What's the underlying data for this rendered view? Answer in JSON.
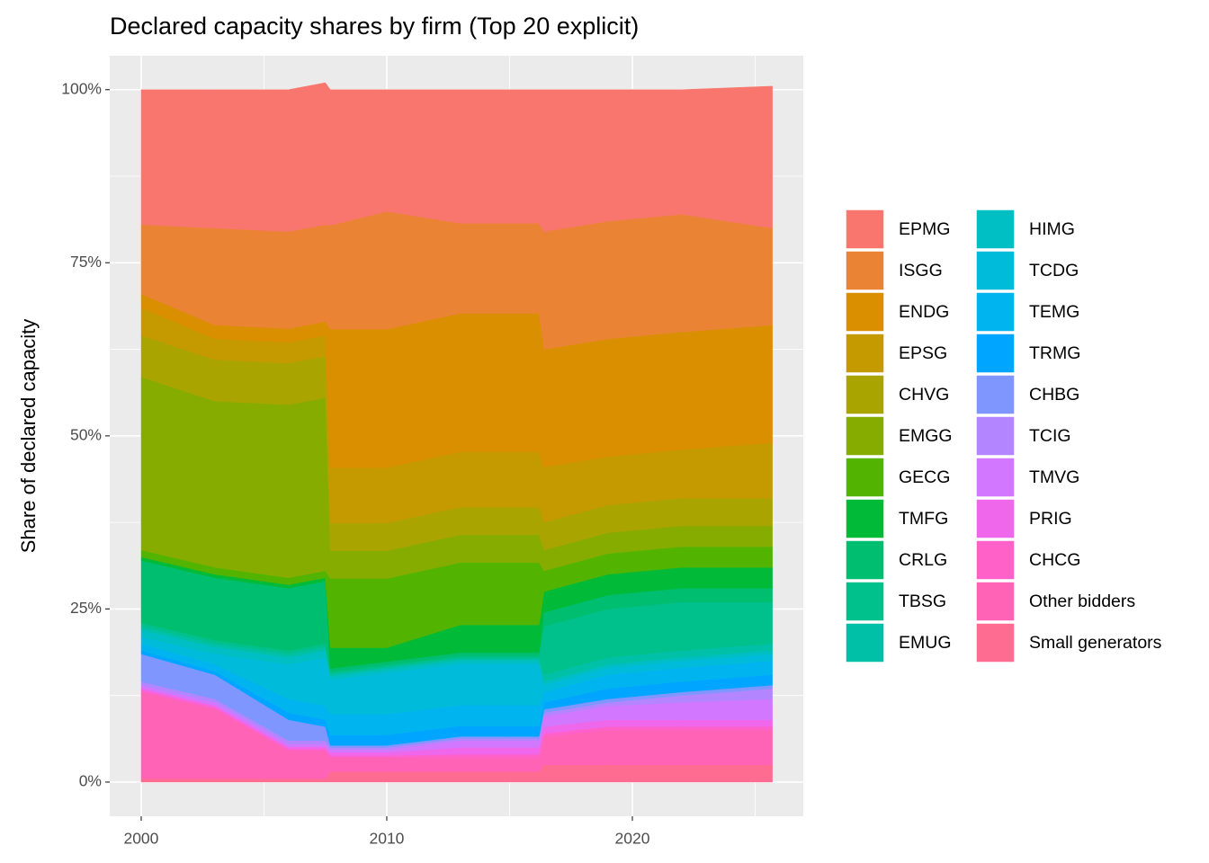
{
  "chart_data": {
    "type": "area",
    "title": "Declared capacity shares by firm (Top 20 explicit)",
    "y_label": "Share of declared capacity",
    "x": [
      2000,
      2003,
      2006,
      2007.5,
      2007.7,
      2010,
      2013,
      2016.2,
      2016.4,
      2019,
      2022,
      2025.7
    ],
    "xlim": [
      1998.72,
      2026.96
    ],
    "xticks": [
      2000,
      2010,
      2020
    ],
    "ylim": [
      -4.94,
      104.9
    ],
    "yticks": [
      {
        "value": 0,
        "label": "0%"
      },
      {
        "value": 25,
        "label": "25%"
      },
      {
        "value": 50,
        "label": "50%"
      },
      {
        "value": 75,
        "label": "75%"
      },
      {
        "value": 100,
        "label": "100%"
      }
    ],
    "grid": true,
    "legend": "right",
    "stacked": true,
    "series": [
      {
        "name": "EPMG",
        "color": "#F8766D",
        "values": [
          19.5,
          20,
          20.5,
          20.5,
          19.6,
          17.6,
          19.3,
          19.3,
          20.5,
          19,
          18,
          20.5
        ]
      },
      {
        "name": "ISGG",
        "color": "#EB8335",
        "values": [
          10,
          14,
          14,
          14,
          15,
          17,
          13,
          13,
          17,
          17,
          17,
          14
        ]
      },
      {
        "name": "ENDG",
        "color": "#DA8F00",
        "values": [
          2,
          2,
          2,
          2,
          20,
          20,
          20,
          20,
          17,
          17,
          17,
          17
        ]
      },
      {
        "name": "EPSG",
        "color": "#C49A00",
        "values": [
          4,
          3,
          3,
          3,
          8,
          8,
          8,
          8,
          8,
          7,
          7,
          8
        ]
      },
      {
        "name": "CHVG",
        "color": "#A9A400",
        "values": [
          6,
          6,
          6,
          6,
          4,
          4,
          4,
          4,
          4,
          4,
          4,
          4
        ]
      },
      {
        "name": "EMGG",
        "color": "#86AC00",
        "values": [
          25,
          24,
          25,
          25,
          4,
          4,
          4,
          4,
          3,
          3,
          3,
          3
        ]
      },
      {
        "name": "GECG",
        "color": "#53B400",
        "values": [
          1,
          1,
          1,
          1,
          10,
          10,
          9,
          9,
          3,
          3,
          3,
          3
        ]
      },
      {
        "name": "TMFG",
        "color": "#00BA38",
        "values": [
          0.5,
          0.5,
          0.5,
          0.5,
          3,
          2,
          4,
          4,
          3,
          3,
          3,
          3
        ]
      },
      {
        "name": "CRLG",
        "color": "#00BE70",
        "values": [
          9,
          9,
          9,
          9,
          0.5,
          0.5,
          0.5,
          0.5,
          2,
          2,
          2,
          2
        ]
      },
      {
        "name": "TBSG",
        "color": "#00C08B",
        "values": [
          0.5,
          0.5,
          0.5,
          0.5,
          0.3,
          0.3,
          0.3,
          0.3,
          7,
          7,
          7,
          6
        ]
      },
      {
        "name": "EMUG",
        "color": "#00C0A7",
        "values": [
          0.5,
          0.5,
          0.5,
          0.5,
          0.3,
          0.3,
          0.3,
          0.3,
          1,
          1,
          1,
          1
        ]
      },
      {
        "name": "HIMG",
        "color": "#00BFC4",
        "values": [
          1,
          1,
          1,
          1,
          0.5,
          0.5,
          0.5,
          0.5,
          0.5,
          0.5,
          0.5,
          0.5
        ]
      },
      {
        "name": "TCDG",
        "color": "#00BBDA",
        "values": [
          1,
          1.5,
          5,
          7,
          5,
          6,
          6,
          6,
          1,
          1,
          1,
          1
        ]
      },
      {
        "name": "TEMG",
        "color": "#00B4EF",
        "values": [
          1,
          1,
          2,
          2,
          3,
          3,
          3,
          3,
          1.5,
          2,
          2,
          2
        ]
      },
      {
        "name": "TRMG",
        "color": "#00A5FF",
        "values": [
          0.5,
          0.5,
          1,
          1,
          1.5,
          1.5,
          1.5,
          1.5,
          1,
          1.5,
          1.5,
          1.5
        ]
      },
      {
        "name": "CHBG",
        "color": "#7F96FF",
        "values": [
          4,
          3.5,
          3,
          2,
          0.3,
          0.3,
          0.3,
          0.3,
          0.5,
          0.5,
          0.5,
          0.5
        ]
      },
      {
        "name": "TCIG",
        "color": "#B385FF",
        "values": [
          0.5,
          0.5,
          0.5,
          0.5,
          0.3,
          0.3,
          0.3,
          0.3,
          0.5,
          0.5,
          1,
          1.5
        ]
      },
      {
        "name": "TMVG",
        "color": "#D277FF",
        "values": [
          0.4,
          0.4,
          0.4,
          0.4,
          0.4,
          0.4,
          1,
          1,
          1.5,
          2,
          2.5,
          3
        ]
      },
      {
        "name": "PRIG",
        "color": "#EF67EB",
        "values": [
          0.3,
          0.3,
          0.3,
          0.3,
          0.5,
          0.5,
          1,
          1,
          1,
          1,
          1,
          1
        ]
      },
      {
        "name": "CHCG",
        "color": "#FF61C9",
        "values": [
          0.3,
          0.3,
          0.3,
          0.3,
          0.3,
          0.3,
          0.5,
          0.5,
          0.5,
          0.5,
          0.5,
          0.5
        ]
      },
      {
        "name": "Other bidders",
        "color": "#FF63B6",
        "values": [
          12.5,
          10,
          4,
          4,
          2,
          2,
          2,
          2,
          4,
          5,
          5,
          5
        ]
      },
      {
        "name": "Small generators",
        "color": "#FF6C91",
        "values": [
          0.5,
          0.5,
          0.5,
          0.5,
          1.5,
          1.5,
          1.5,
          1.5,
          2.5,
          2.5,
          2.5,
          2.5
        ]
      }
    ]
  }
}
